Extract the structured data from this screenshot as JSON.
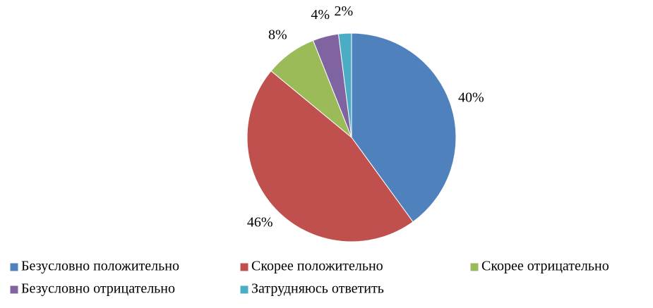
{
  "chart_data": {
    "type": "pie",
    "categories": [
      "Безусловно положительно",
      "Скорее положительно",
      "Скорее отрицательно",
      "Безусловно отрицательно",
      "Затрудняюсь ответить"
    ],
    "values": [
      40,
      46,
      8,
      4,
      2
    ],
    "value_labels": [
      "40%",
      "46%",
      "8%",
      "4%",
      "2%"
    ],
    "colors": [
      "#4f81bd",
      "#c0504d",
      "#9bbb59",
      "#8064a2",
      "#4bacc6"
    ],
    "legend": "bottom"
  }
}
